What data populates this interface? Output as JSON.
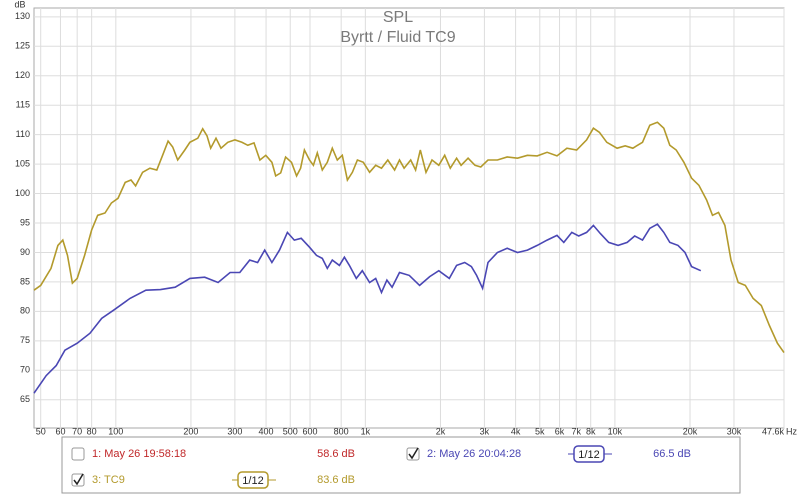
{
  "chart_data": {
    "type": "line",
    "title": "SPL",
    "subtitle": "Byrtt / Fluid TC9",
    "ylabel": "dB",
    "xlabel": "Hz",
    "xscale": "log",
    "grid": true,
    "xlim": [
      47,
      47600
    ],
    "ylim": [
      60.2,
      131.5
    ],
    "yticks": [
      65,
      70,
      75,
      80,
      85,
      90,
      95,
      100,
      105,
      110,
      115,
      120,
      125,
      130
    ],
    "xticks": [
      50,
      60,
      70,
      80,
      100,
      200,
      300,
      400,
      500,
      600,
      800,
      {
        "value": 1000,
        "label": "1k"
      },
      {
        "value": 2000,
        "label": "2k"
      },
      {
        "value": 3000,
        "label": "3k"
      },
      {
        "value": 4000,
        "label": "4k"
      },
      {
        "value": 5000,
        "label": "5k"
      },
      {
        "value": 6000,
        "label": "6k"
      },
      {
        "value": 7000,
        "label": "7k"
      },
      {
        "value": 8000,
        "label": "8k"
      },
      {
        "value": 10000,
        "label": "10k"
      },
      {
        "value": 20000,
        "label": "20k"
      },
      {
        "value": 30000,
        "label": "30k"
      },
      {
        "value": 47600,
        "label": "47.6k"
      }
    ],
    "series": [
      {
        "name": "3: TC9",
        "color": "#b39a2c",
        "x": [
          47,
          50,
          55,
          58.6,
          61.3,
          64,
          67,
          70,
          75,
          80,
          84.6,
          90.5,
          96,
          102,
          109,
          115,
          120,
          128,
          137,
          146,
          154,
          162,
          169,
          177,
          189,
          198,
          213,
          223,
          232,
          240,
          252,
          264,
          281,
          300,
          320,
          338,
          358,
          378,
          399,
          422,
          437,
          458,
          479,
          506,
          530,
          550,
          570,
          597,
          619,
          642,
          672,
          704,
          737,
          772,
          808,
          847,
          887,
          929,
          981,
          1040,
          1100,
          1160,
          1230,
          1310,
          1370,
          1430,
          1520,
          1590,
          1660,
          1750,
          1850,
          1970,
          2080,
          2190,
          2320,
          2420,
          2580,
          2750,
          2900,
          3100,
          3380,
          3700,
          4070,
          4460,
          4880,
          5350,
          5860,
          6420,
          7030,
          7700,
          8200,
          8670,
          9280,
          10200,
          11000,
          11800,
          12900,
          13800,
          14800,
          15700,
          16600,
          17600,
          18900,
          20300,
          21700,
          23300,
          24600,
          26000,
          27600,
          29200,
          31200,
          33300,
          35800,
          38600,
          41600,
          44800,
          47600
        ],
        "values": [
          83.6,
          84.4,
          87.3,
          91.2,
          92.1,
          89.5,
          84.8,
          85.6,
          89.5,
          93.8,
          96.3,
          96.7,
          98.4,
          99.2,
          101.9,
          102.3,
          101.3,
          103.6,
          104.3,
          104,
          106.5,
          108.9,
          107.9,
          105.7,
          107.4,
          108.7,
          109.4,
          111,
          109.8,
          107.7,
          109.4,
          107.7,
          108.7,
          109.1,
          108.7,
          108.2,
          108.6,
          105.7,
          106.5,
          105.3,
          103,
          103.5,
          106.2,
          105.3,
          103,
          104.3,
          107.4,
          105.7,
          104.8,
          106.9,
          104,
          105.3,
          107.7,
          105.7,
          106.5,
          102.3,
          103.6,
          105.7,
          105.3,
          103.6,
          104.8,
          104.3,
          105.7,
          104,
          105.7,
          104.3,
          105.7,
          104,
          107.4,
          103.6,
          105.7,
          104.8,
          106.5,
          104.3,
          106,
          104.8,
          106,
          104.8,
          104.5,
          105.7,
          105.7,
          106.2,
          106,
          106.5,
          106.4,
          107,
          106.4,
          107.7,
          107.4,
          109.1,
          111.1,
          110.4,
          108.7,
          107.7,
          108.1,
          107.7,
          108.7,
          111.6,
          112.1,
          111.1,
          108.2,
          107.4,
          105.3,
          102.6,
          101.4,
          98.9,
          96.3,
          96.8,
          94.6,
          88.7,
          84.9,
          84.4,
          82.2,
          81,
          77.6,
          74.6,
          73
        ]
      },
      {
        "name": "2: May 26 20:04:28",
        "color": "#4a47b4",
        "x": [
          47,
          52.6,
          57.7,
          62.5,
          70,
          78.8,
          87.8,
          98,
          114,
          132,
          151,
          173,
          198,
          227,
          257,
          287,
          314,
          344,
          370,
          395,
          422,
          453,
          487,
          519,
          553,
          597,
          637,
          672,
          704,
          737,
          787,
          824,
          863,
          920,
          972,
          1040,
          1100,
          1160,
          1220,
          1280,
          1370,
          1500,
          1650,
          1810,
          1970,
          2170,
          2320,
          2500,
          2660,
          2790,
          2950,
          3100,
          3380,
          3700,
          4070,
          4460,
          4880,
          5350,
          5860,
          6240,
          6720,
          7160,
          7700,
          8200,
          8750,
          9440,
          10300,
          11200,
          12000,
          12900,
          13800,
          14800,
          15700,
          16600,
          17900,
          19100,
          20300,
          22100
        ],
        "values": [
          66.1,
          69.1,
          70.8,
          73.4,
          74.6,
          76.3,
          78.8,
          80.2,
          82.2,
          83.6,
          83.7,
          84.1,
          85.6,
          85.8,
          84.9,
          86.6,
          86.6,
          88.7,
          88.3,
          90.4,
          88.3,
          90.4,
          93.4,
          92.1,
          92.4,
          90.9,
          89.5,
          89,
          87.3,
          88.7,
          87.8,
          89.2,
          87.8,
          85.6,
          86.9,
          84.9,
          85.6,
          83.2,
          85.3,
          84.1,
          86.6,
          86.1,
          84.4,
          85.9,
          86.9,
          85.6,
          87.8,
          88.3,
          87.6,
          86.1,
          83.9,
          88.3,
          90,
          90.7,
          90,
          90.4,
          91.2,
          92.1,
          92.9,
          91.7,
          93.4,
          92.8,
          93.4,
          94.6,
          93.2,
          91.7,
          91.2,
          91.7,
          92.8,
          92.1,
          94.1,
          94.8,
          93.4,
          91.7,
          91.2,
          90,
          87.6,
          86.9
        ]
      }
    ],
    "legend_entries": [
      {
        "name": "1: May 26 19:58:18",
        "color": "#c0282a",
        "checked": false,
        "level": {
          "value": 58.6,
          "label": "58.6 dB"
        }
      },
      {
        "name": "2: May 26 20:04:28",
        "color": "#4a47b4",
        "checked": true,
        "smoothing": "1/12",
        "level": {
          "value": 66.5,
          "label": "66.5 dB"
        }
      },
      {
        "name": "3: TC9",
        "color": "#b39a2c",
        "checked": true,
        "smoothing": "1/12",
        "level": {
          "value": 83.6,
          "label": "83.6 dB"
        }
      }
    ]
  }
}
